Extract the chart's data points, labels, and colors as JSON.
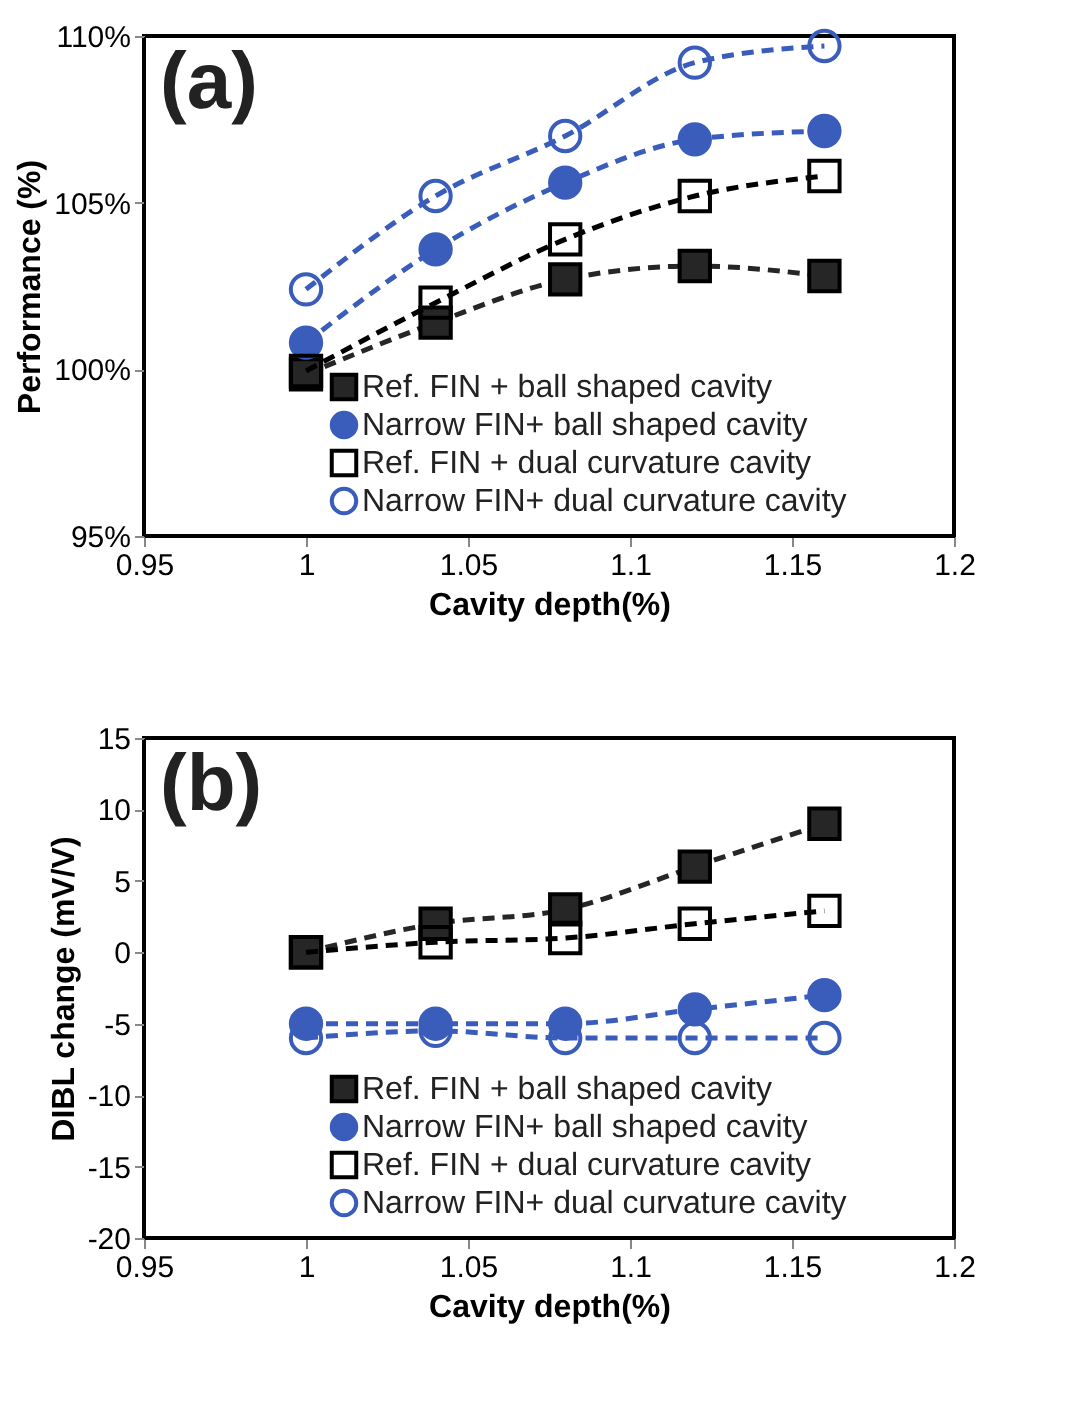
{
  "chart_data": [
    {
      "type": "line",
      "annotations": [
        "(a)"
      ],
      "xlabel": "Cavity depth(%)",
      "ylabel": "Performance (%)",
      "x": [
        1.0,
        1.04,
        1.08,
        1.12,
        1.16
      ],
      "xlim": [
        0.95,
        1.2
      ],
      "xticks": [
        0.95,
        1,
        1.05,
        1.1,
        1.15,
        1.2
      ],
      "ylim": [
        95,
        110
      ],
      "yticks": [
        {
          "value": 95,
          "label": "95%"
        },
        {
          "value": 100,
          "label": "100%"
        },
        {
          "value": 105,
          "label": "105%"
        },
        {
          "value": 110,
          "label": "110%"
        }
      ],
      "grid": false,
      "legend": "bottom right",
      "line_style": "dashed",
      "series": [
        {
          "name": "Ref. FIN + ball shaped cavity",
          "color": "#262626",
          "marker": "square",
          "values": [
            99.85,
            101.4,
            102.7,
            103.1,
            102.8
          ]
        },
        {
          "name": "Narrow FIN+ ball shaped cavity",
          "color": "#3a5dbb",
          "marker": "circle",
          "values": [
            100.8,
            103.6,
            105.6,
            106.9,
            107.15
          ]
        },
        {
          "name": "Ref. FIN + dual curvature cavity",
          "color": "#000000",
          "marker": "square",
          "values": [
            99.95,
            102.0,
            103.9,
            105.2,
            105.8
          ]
        },
        {
          "name": "Narrow FIN+ dual curvature cavity",
          "color": "#3a5dbb",
          "marker": "circle",
          "values": [
            102.4,
            105.2,
            107.0,
            109.2,
            109.7
          ]
        }
      ]
    },
    {
      "type": "line",
      "annotations": [
        "(b)"
      ],
      "xlabel": "Cavity depth(%)",
      "ylabel": "DIBL change (mV/V)",
      "x": [
        1.0,
        1.04,
        1.08,
        1.12,
        1.16
      ],
      "xlim": [
        0.95,
        1.2
      ],
      "xticks": [
        0.95,
        1,
        1.05,
        1.1,
        1.15,
        1.2
      ],
      "ylim": [
        -20,
        15
      ],
      "yticks": [
        -20,
        -15,
        -10,
        -5,
        0,
        5,
        10,
        15
      ],
      "grid": false,
      "legend": "bottom right",
      "line_style": "dashed",
      "series": [
        {
          "name": "Ref. FIN + ball shaped cavity",
          "color": "#262626",
          "marker": "square",
          "values": [
            0,
            2.0,
            3.0,
            6.0,
            9.0
          ]
        },
        {
          "name": "Narrow FIN+ ball shaped cavity",
          "color": "#3a5dbb",
          "marker": "circle",
          "values": [
            -5,
            -5,
            -5,
            -4,
            -3
          ]
        },
        {
          "name": "Ref. FIN + dual curvature cavity",
          "color": "#000000",
          "marker": "square",
          "values": [
            0,
            0.7,
            1.0,
            2.0,
            2.9
          ]
        },
        {
          "name": "Narrow FIN+ dual curvature cavity",
          "color": "#3a5dbb",
          "marker": "circle",
          "values": [
            -6,
            -5.5,
            -6,
            -6,
            -6
          ]
        }
      ]
    }
  ]
}
